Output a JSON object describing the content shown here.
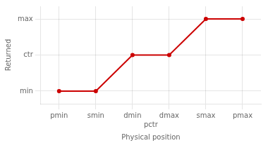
{
  "chart_data": {
    "type": "line",
    "x": [
      0,
      1,
      2,
      3,
      4,
      5
    ],
    "values": [
      0,
      0,
      1,
      1,
      2,
      2
    ],
    "color": "#cc0000",
    "xlabel": "Physical position",
    "ylabel": "Returned",
    "xlim": [
      -0.5,
      5.5
    ],
    "xticks": [
      {
        "value": 0,
        "label": "pmin"
      },
      {
        "value": 1,
        "label": "smin"
      },
      {
        "value": 2,
        "label": "dmin"
      },
      {
        "value": 3,
        "label": "dmax"
      },
      {
        "value": 4,
        "label": "smax"
      },
      {
        "value": 5,
        "label": "pmax"
      }
    ],
    "ylim": [
      -0.35,
      2.35
    ],
    "yticks": [
      {
        "value": 0,
        "label": "min"
      },
      {
        "value": 1,
        "label": "ctr"
      },
      {
        "value": 2,
        "label": "max"
      }
    ],
    "annotations": [
      {
        "text": "pctr",
        "x": 2.5
      }
    ],
    "grid": true
  }
}
